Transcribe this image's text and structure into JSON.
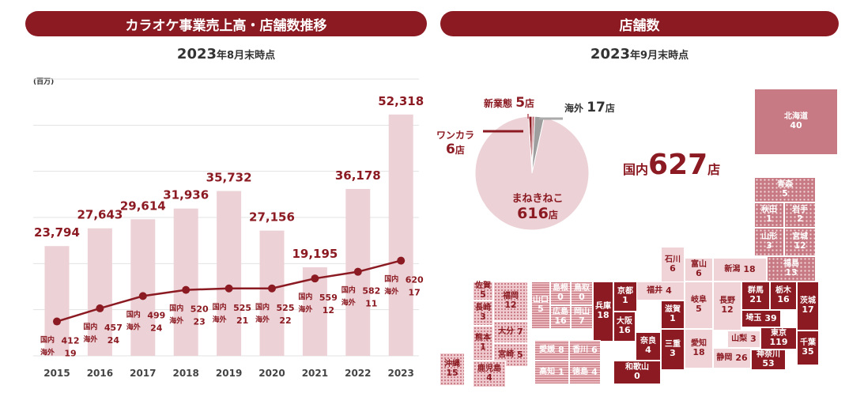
{
  "left_panel": {
    "title": "カラオケ事業売上高・店舗数推移",
    "date_big": "2023",
    "date_suffix": "年8月末時点",
    "unit": "(百万)"
  },
  "right_panel": {
    "title": "店舗数",
    "date_big": "2023",
    "date_suffix": "年9月末時点"
  },
  "chart_data": [
    {
      "type": "bar",
      "title": "カラオケ事業売上高・店舗数推移",
      "categories": [
        "2015",
        "2016",
        "2017",
        "2018",
        "2019",
        "2020",
        "2021",
        "2022",
        "2023"
      ],
      "series": [
        {
          "name": "",
          "values": [
            23794,
            27643,
            29614,
            31936,
            35732,
            27156,
            19195,
            36178,
            52318
          ],
          "labels": [
            "23,794",
            "27,643",
            "29,614",
            "31,936",
            "35,732",
            "27,156",
            "19,195",
            "36,178",
            "52,318"
          ]
        },
        {
          "name": "国内",
          "values": [
            412,
            457,
            499,
            520,
            525,
            525,
            559,
            582,
            620
          ]
        },
        {
          "name": "海外",
          "values": [
            19,
            24,
            24,
            23,
            21,
            22,
            12,
            11,
            17
          ]
        }
      ],
      "ylabel": "(百万)",
      "ylim": [
        0,
        60000
      ],
      "grid": true,
      "colors": {
        "bar": "#ecd2d6",
        "line": "#8b1a22",
        "text": "#8b1a22"
      }
    },
    {
      "type": "pie",
      "slices": [
        {
          "label": "まねきねこ",
          "value": 616,
          "display": "616店",
          "color": "#ecd2d6"
        },
        {
          "label": "ワンカラ",
          "value": 6,
          "display": "6店",
          "color": "#8b1a22"
        },
        {
          "label": "新業態",
          "value": 5,
          "display": "5店",
          "color": "#c77a83"
        },
        {
          "label": "海外",
          "value": 17,
          "display": "17店",
          "color": "#9e9e9e"
        }
      ]
    }
  ],
  "pie_labels": {
    "newbiz_name": "新業態",
    "newbiz_val": "5",
    "ten": "店",
    "kaigai_name": "海外",
    "kaigai_val": "17",
    "onekara_name": "ワンカラ",
    "onekara_val": "6",
    "maneki_name": "まねきねこ",
    "maneki_val": "616"
  },
  "domestic": {
    "prefix": "国内",
    "value": "627",
    "suffix": "店"
  },
  "prefectures": [
    {
      "name": "北海道",
      "value": "40"
    },
    {
      "name": "青森",
      "value": "5"
    },
    {
      "name": "秋田",
      "value": "1"
    },
    {
      "name": "岩手",
      "value": "2"
    },
    {
      "name": "山形",
      "value": "3"
    },
    {
      "name": "宮城",
      "value": "12"
    },
    {
      "name": "福島",
      "value": "13"
    },
    {
      "name": "石川",
      "value": "6"
    },
    {
      "name": "富山",
      "value": "6"
    },
    {
      "name": "新潟",
      "value": "18"
    },
    {
      "name": "福井",
      "value": "4"
    },
    {
      "name": "岐阜",
      "value": "5"
    },
    {
      "name": "長野",
      "value": "12"
    },
    {
      "name": "群馬",
      "value": "21"
    },
    {
      "name": "栃木",
      "value": "16"
    },
    {
      "name": "茨城",
      "value": "17"
    },
    {
      "name": "埼玉",
      "value": "39"
    },
    {
      "name": "山梨",
      "value": "3"
    },
    {
      "name": "東京",
      "value": "119"
    },
    {
      "name": "千葉",
      "value": "35"
    },
    {
      "name": "神奈川",
      "value": "53"
    },
    {
      "name": "静岡",
      "value": "26"
    },
    {
      "name": "愛知",
      "value": "18"
    },
    {
      "name": "三重",
      "value": "3"
    },
    {
      "name": "滋賀",
      "value": "1"
    },
    {
      "name": "京都",
      "value": "1"
    },
    {
      "name": "兵庫",
      "value": "18"
    },
    {
      "name": "大阪",
      "value": "16"
    },
    {
      "name": "奈良",
      "value": "4"
    },
    {
      "name": "和歌山",
      "value": "0"
    },
    {
      "name": "鳥取",
      "value": "0"
    },
    {
      "name": "島根",
      "value": "0"
    },
    {
      "name": "岡山",
      "value": "7"
    },
    {
      "name": "広島",
      "value": "16"
    },
    {
      "name": "山口",
      "value": "5"
    },
    {
      "name": "香川",
      "value": "6"
    },
    {
      "name": "愛媛",
      "value": "8"
    },
    {
      "name": "徳島",
      "value": "4"
    },
    {
      "name": "高知",
      "value": "1"
    },
    {
      "name": "福岡",
      "value": "12"
    },
    {
      "name": "佐賀",
      "value": "5"
    },
    {
      "name": "長崎",
      "value": "3"
    },
    {
      "name": "大分",
      "value": "7"
    },
    {
      "name": "熊本",
      "value": "1"
    },
    {
      "name": "宮崎",
      "value": "5"
    },
    {
      "name": "鹿児島",
      "value": "4"
    },
    {
      "name": "沖縄",
      "value": "15"
    }
  ]
}
